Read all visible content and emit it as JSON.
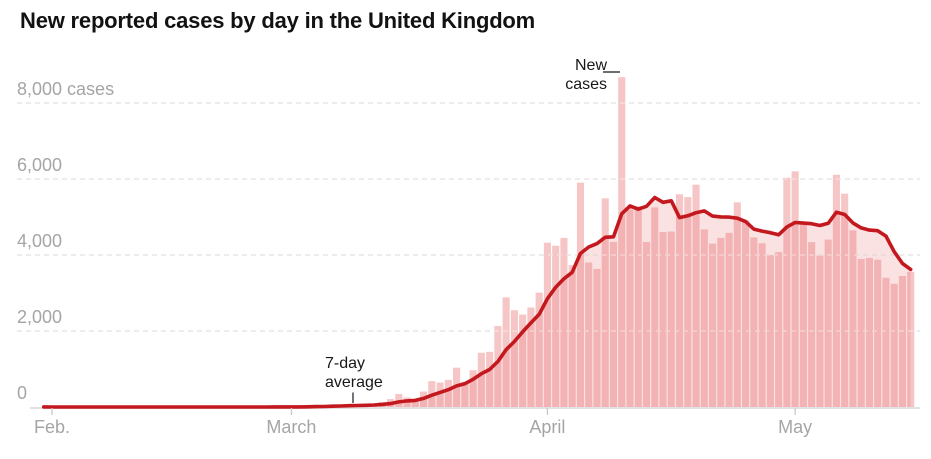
{
  "chart_data": {
    "type": "bar",
    "title": "New reported cases by day in the United Kingdom",
    "subtitle": "",
    "legend_position": "none",
    "grid": "dashed-horizontal",
    "start_date": "2020-01-31",
    "end_date": "2020-05-15",
    "x_unit": "day",
    "ylabel": "cases",
    "ylim": [
      0,
      8700
    ],
    "values_daily": [
      2,
      0,
      0,
      0,
      0,
      0,
      1,
      0,
      0,
      1,
      4,
      0,
      1,
      0,
      0,
      0,
      0,
      0,
      0,
      0,
      0,
      0,
      0,
      4,
      0,
      0,
      0,
      2,
      4,
      3,
      13,
      4,
      12,
      34,
      30,
      48,
      43,
      64,
      46,
      54,
      83,
      134,
      208,
      342,
      251,
      152,
      407,
      680,
      643,
      714,
      1035,
      665,
      967,
      1427,
      1452,
      2129,
      2885,
      2546,
      2433,
      2619,
      3009,
      4324,
      4244,
      4450,
      3735,
      5903,
      3802,
      3634,
      5491,
      4344,
      8681,
      5195,
      5288,
      4342,
      5252,
      4603,
      4617,
      5599,
      5525,
      5850,
      4676,
      4301,
      4451,
      4583,
      5386,
      4913,
      4463,
      4310,
      3996,
      4076,
      6032,
      6201,
      4806,
      4339,
      3985,
      4406,
      6111,
      5614,
      4649,
      3896,
      3923,
      3877,
      3403,
      3242,
      3446,
      3560
    ],
    "series": [
      {
        "name": "New cases",
        "style": "bar"
      },
      {
        "name": "7-day average",
        "style": "line",
        "window": 7,
        "method": "trailing mean of values_daily"
      }
    ],
    "y_axis": {
      "ticks": [
        {
          "value": 8000,
          "label": "8,000 cases"
        },
        {
          "value": 6000,
          "label": "6,000"
        },
        {
          "value": 4000,
          "label": "4,000"
        },
        {
          "value": 2000,
          "label": "2,000"
        },
        {
          "value": 0,
          "label": "0"
        }
      ]
    },
    "x_axis": {
      "ticks": [
        {
          "day_index": 1,
          "label": "Feb."
        },
        {
          "day_index": 30,
          "label": "March"
        },
        {
          "day_index": 61,
          "label": "April"
        },
        {
          "day_index": 91,
          "label": "May"
        }
      ]
    },
    "annotations": [
      {
        "id": "new-cases",
        "lines": [
          "New",
          "cases"
        ]
      },
      {
        "id": "seven-day-average",
        "lines": [
          "7-day",
          "average"
        ]
      }
    ],
    "colors": {
      "bar_fill": "#f6c5c6",
      "avg_area_overlay": "rgba(235,110,110,0.2)",
      "avg_line": "#c3191e",
      "gridline": "#dcdcdc",
      "baseline": "#e2e2e2",
      "tick_mark": "#c9c9c9",
      "axis_text": "#a5a5a5",
      "annotation_text": "#181818",
      "title_text": "#121212"
    }
  }
}
